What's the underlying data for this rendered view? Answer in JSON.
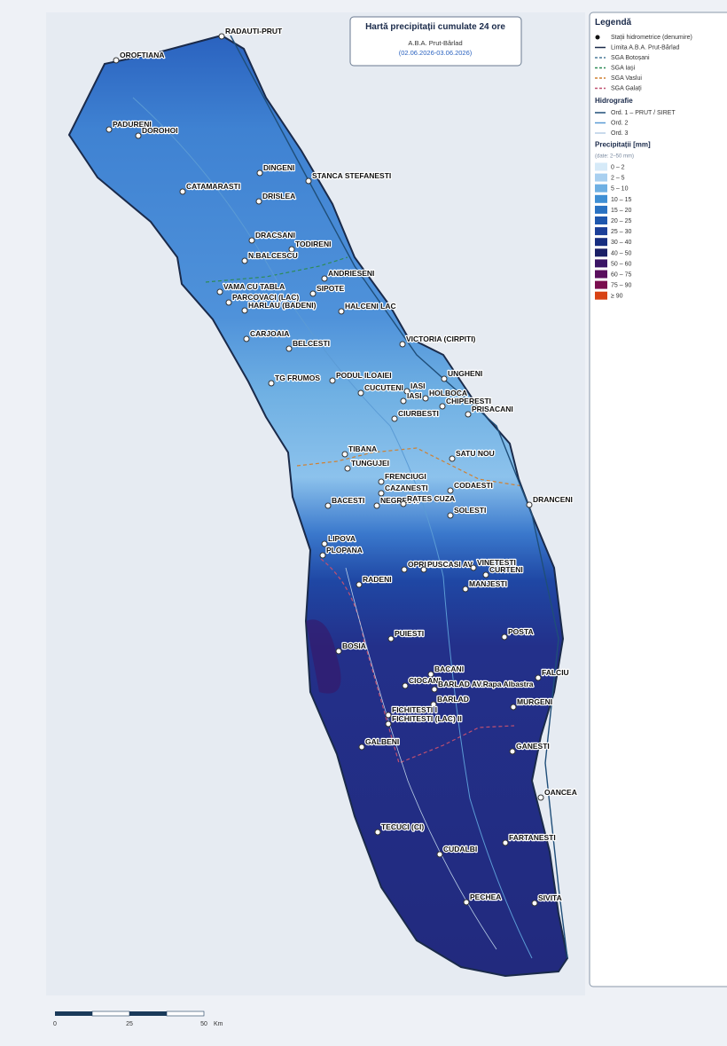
{
  "header": {
    "title": "Hartă precipitații cumulate 24 ore",
    "subtitle": "A.B.A. Prut-Bârlad",
    "period": "(02.06.2026-03.06.2026)"
  },
  "legend": {
    "title": "Legendă",
    "items": [
      {
        "label": "Stații hidrometrice (denumire)",
        "symbol": "dot",
        "color": "#111111"
      },
      {
        "label": "Limita A.B.A. Prut-Bârlad",
        "symbol": "line",
        "color": "#1a2a4a"
      },
      {
        "label": "SGA Botoșani",
        "symbol": "dash",
        "color": "#4a7a9a"
      },
      {
        "label": "SGA Iași",
        "symbol": "dash",
        "color": "#2e8b57"
      },
      {
        "label": "SGA Vaslui",
        "symbol": "dash",
        "color": "#d08030"
      },
      {
        "label": "SGA Galați",
        "symbol": "dash",
        "color": "#c05070"
      }
    ],
    "hydro_title": "Hidrografie",
    "hydro_items": [
      {
        "label": "Ord. 1 – PRUT / SIRET",
        "color": "#1f4e79"
      },
      {
        "label": "Ord. 2",
        "color": "#5b9bd5"
      },
      {
        "label": "Ord. 3",
        "color": "#b7cde6"
      }
    ],
    "precip_title": "Precipitații [mm]",
    "precip_note": "(date: 2–50 mm)",
    "classes": [
      {
        "label": "0 – 2",
        "color": "#d6eaf8"
      },
      {
        "label": "2 – 5",
        "color": "#a9d0f0"
      },
      {
        "label": "5 – 10",
        "color": "#6fb0e3"
      },
      {
        "label": "10 – 15",
        "color": "#3f8fd4"
      },
      {
        "label": "15 – 20",
        "color": "#2a72c2"
      },
      {
        "label": "20 – 25",
        "color": "#1f57ad"
      },
      {
        "label": "25 – 30",
        "color": "#1c3f98"
      },
      {
        "label": "30 – 40",
        "color": "#172e80"
      },
      {
        "label": "40 – 50",
        "color": "#1a1f66"
      },
      {
        "label": "50 – 60",
        "color": "#3a1465"
      },
      {
        "label": "60 – 75",
        "color": "#5a0f5e"
      },
      {
        "label": "75 – 90",
        "color": "#7a0d4f"
      },
      {
        "label": "≥ 90",
        "color": "#d84315"
      }
    ]
  },
  "stations": [
    "RADAUTI-PRUT",
    "OROFTIANA",
    "PADURENI",
    "DOROHOI",
    "DINGENI",
    "STANCA STEFANESTI",
    "CATAMARASTI",
    "DRISLEA",
    "DRACSANI",
    "TODIRENI",
    "N.BALCESCU",
    "ANDRIESENI",
    "VAMA CU TABLA",
    "SIPOTE",
    "PARCOVACI (LAC)",
    "HARLAU (BADENI)",
    "HALCENI LAC",
    "CARJOAIA",
    "BELCESTI",
    "VICTORIA (CIRPITI)",
    "UNGHENI",
    "TG FRUMOS",
    "PODUL ILOAIEI",
    "CUCUTENI",
    "IASI",
    "IASI",
    "HOLBOCA",
    "CHIPERESTI",
    "CIURBESTI",
    "PRISACANI",
    "TIBANA",
    "SATU NOU",
    "TUNGUJEI",
    "FRENCIUGI",
    "CAZANESTI",
    "CODAESTI",
    "BACESTI",
    "NEGRESTI",
    "RATES CUZA",
    "SOLESTI",
    "DRANCENI",
    "LIPOVA",
    "PLOPANA",
    "OPRISESTI",
    "PUSCASI AV.",
    "VINETESTI",
    "CURTENI",
    "RADENI",
    "MANJESTI",
    "PUIESTI",
    "POSTA",
    "BOSIA",
    "BACANI",
    "FALCIU",
    "CIOCANI",
    "BARLAD AV.Rapa Albastra",
    "BARLAD",
    "MURGENI",
    "FICHITESTI I",
    "FICHITESTI (LAC) II",
    "GALBENI",
    "GANESTI",
    "OANCEA",
    "TECUCI (CI)",
    "FARTANESTI",
    "CUDALBI",
    "PECHEA",
    "SIVITA"
  ],
  "scale": {
    "labels": [
      "0",
      "25",
      "50"
    ],
    "unit": "Km"
  }
}
